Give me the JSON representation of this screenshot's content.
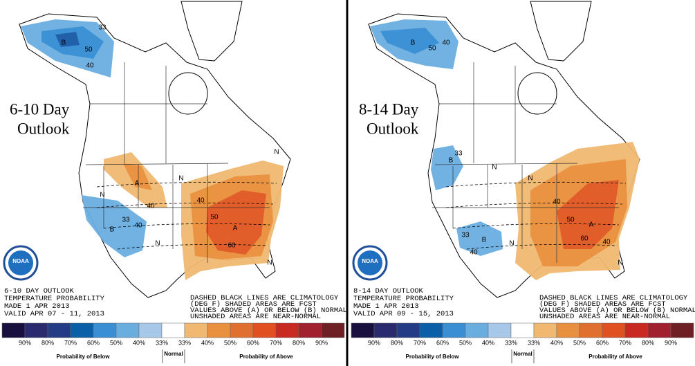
{
  "noaa": "NOAA",
  "notes": [
    "DASHED BLACK LINES ARE CLIMATOLOGY",
    "(DEG F) SHADED AREAS ARE FCST",
    "VALUES ABOVE (A) OR BELOW (B) NORMAL",
    "UNSHADED AREAS ARE NEAR-NORMAL"
  ],
  "legend": {
    "labels": [
      "90%",
      "80%",
      "70%",
      "60%",
      "50%",
      "40%",
      "33%",
      "33%",
      "40%",
      "50%",
      "60%",
      "70%",
      "80%",
      "90%"
    ],
    "below": "Probability of Below",
    "normal": "Normal",
    "above": "Probability of Above"
  },
  "panels": [
    {
      "heading": [
        "6-10 Day",
        "Outlook"
      ],
      "info": [
        "6-10 DAY OUTLOOK",
        "TEMPERATURE PROBABILITY",
        "MADE   1 APR 2013",
        "VALID   APR 07 - 11, 2013"
      ],
      "map_labels": [
        "B",
        "50",
        "40",
        "33",
        "A",
        "40",
        "B",
        "40",
        "33",
        "A",
        "40",
        "50",
        "60",
        "N",
        "N",
        "N",
        "N",
        "N"
      ]
    },
    {
      "heading": [
        "8-14 Day",
        "Outlook"
      ],
      "info": [
        "8-14 DAY OUTLOOK",
        "TEMPERATURE PROBABILITY",
        "MADE   1 APR 2013",
        "VALID   APR 09 - 15, 2013"
      ],
      "map_labels": [
        "B",
        "50",
        "40",
        "B",
        "33",
        "B",
        "40",
        "33",
        "A",
        "40",
        "50",
        "60",
        "40",
        "N",
        "N",
        "N",
        "N"
      ]
    }
  ]
}
